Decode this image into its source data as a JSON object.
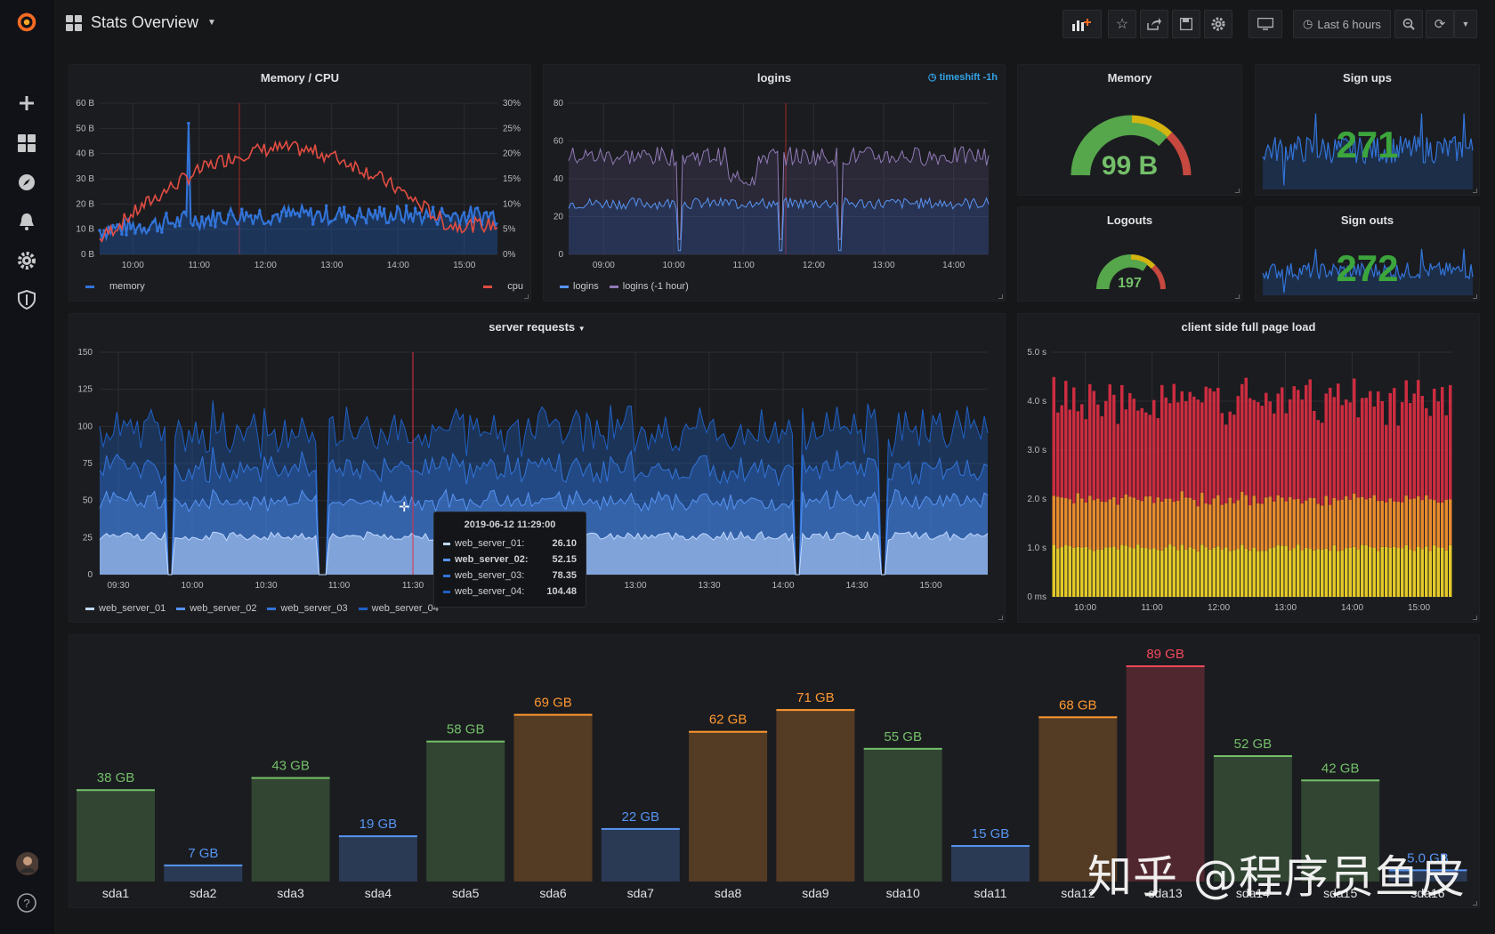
{
  "topbar": {
    "title": "Stats Overview",
    "time_range": "Last 6 hours"
  },
  "panels": {
    "memcpu": {
      "title": "Memory / CPU",
      "left_ticks": [
        "60 B",
        "50 B",
        "40 B",
        "30 B",
        "20 B",
        "10 B",
        "0 B"
      ],
      "right_ticks": [
        "30%",
        "25%",
        "20%",
        "15%",
        "10%",
        "5%",
        "0%"
      ],
      "x_ticks": [
        "10:00",
        "11:00",
        "12:00",
        "13:00",
        "14:00",
        "15:00"
      ],
      "legend_left": "memory",
      "legend_right": "cpu"
    },
    "logins": {
      "title": "logins",
      "timeshift": "timeshift -1h",
      "y_ticks": [
        "80",
        "60",
        "40",
        "20",
        "0"
      ],
      "x_ticks": [
        "09:00",
        "10:00",
        "11:00",
        "12:00",
        "13:00",
        "14:00"
      ],
      "legend": [
        "logins",
        "logins (-1 hour)"
      ]
    },
    "memory": {
      "title": "Memory",
      "value": "99 B"
    },
    "signups": {
      "title": "Sign ups",
      "value": "271"
    },
    "logouts": {
      "title": "Logouts",
      "value": "197"
    },
    "signouts": {
      "title": "Sign outs",
      "value": "272"
    },
    "server": {
      "title": "server requests",
      "y_ticks": [
        "150",
        "125",
        "100",
        "75",
        "50",
        "25",
        "0"
      ],
      "x_ticks": [
        "09:30",
        "10:00",
        "10:30",
        "11:00",
        "11:30",
        "13:00",
        "13:30",
        "14:00",
        "14:30",
        "15:00"
      ],
      "legend": [
        "web_server_01",
        "web_server_02",
        "web_server_03",
        "web_server_04"
      ],
      "tooltip": {
        "time": "2019-06-12 11:29:00",
        "rows": [
          {
            "name": "web_server_01:",
            "value": "26.10"
          },
          {
            "name": "web_server_02:",
            "value": "52.15"
          },
          {
            "name": "web_server_03:",
            "value": "78.35"
          },
          {
            "name": "web_server_04:",
            "value": "104.48"
          }
        ]
      }
    },
    "pageload": {
      "title": "client side full page load",
      "y_ticks": [
        "5.0 s",
        "4.0 s",
        "3.0 s",
        "2.0 s",
        "1.0 s",
        "0 ms"
      ],
      "x_ticks": [
        "10:00",
        "11:00",
        "12:00",
        "13:00",
        "14:00",
        "15:00"
      ]
    }
  },
  "chart_data": {
    "type": "bar",
    "categories": [
      "sda1",
      "sda2",
      "sda3",
      "sda4",
      "sda5",
      "sda6",
      "sda7",
      "sda8",
      "sda9",
      "sda10",
      "sda11",
      "sda12",
      "sda13",
      "sda14",
      "sda15",
      "sda16"
    ],
    "values": [
      38,
      7,
      43,
      19,
      58,
      69,
      22,
      62,
      71,
      55,
      15,
      68,
      89,
      52,
      42,
      5
    ],
    "labels": [
      "38 GB",
      "7 GB",
      "43 GB",
      "19 GB",
      "58 GB",
      "69 GB",
      "22 GB",
      "62 GB",
      "71 GB",
      "55 GB",
      "15 GB",
      "68 GB",
      "89 GB",
      "52 GB",
      "42 GB",
      "5.0 GB"
    ],
    "unit": "GB",
    "colors": {
      "low": "#5794f2",
      "ok": "#73bf69",
      "warn": "#ff9830",
      "crit": "#f2495c"
    }
  },
  "watermark": "知乎 @程序员鱼皮"
}
